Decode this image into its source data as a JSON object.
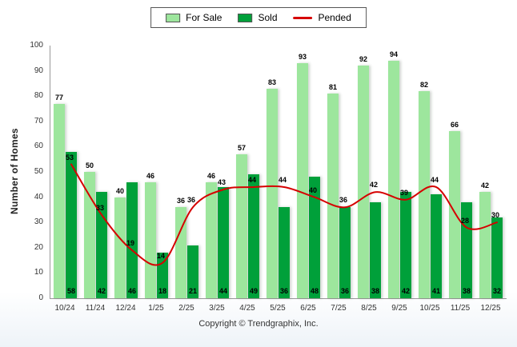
{
  "chart_data": {
    "type": "bar",
    "title": "",
    "categories": [
      "10/24",
      "11/24",
      "12/24",
      "1/25",
      "2/25",
      "3/25",
      "4/25",
      "5/25",
      "6/25",
      "7/25",
      "8/25",
      "9/25",
      "10/25",
      "11/25",
      "12/25"
    ],
    "series": [
      {
        "name": "For Sale",
        "type": "bar",
        "color": "#9de69d",
        "values": [
          77,
          50,
          40,
          46,
          36,
          46,
          57,
          83,
          93,
          81,
          92,
          94,
          82,
          66,
          42
        ]
      },
      {
        "name": "Sold",
        "type": "bar",
        "color": "#00a03a",
        "values": [
          58,
          42,
          46,
          18,
          21,
          44,
          49,
          36,
          48,
          36,
          38,
          42,
          41,
          38,
          32
        ]
      },
      {
        "name": "Pended",
        "type": "line",
        "color": "#d60000",
        "values": [
          53,
          33,
          19,
          14,
          36,
          43,
          44,
          44,
          40,
          36,
          42,
          39,
          44,
          28,
          30
        ]
      }
    ],
    "xlabel": "",
    "ylabel": "Number of Homes",
    "ylim": [
      0,
      100
    ],
    "ytick_step": 10,
    "legend_position": "top",
    "grid": false
  },
  "footer": {
    "copyright": "Copyright © Trendgraphix, Inc."
  }
}
